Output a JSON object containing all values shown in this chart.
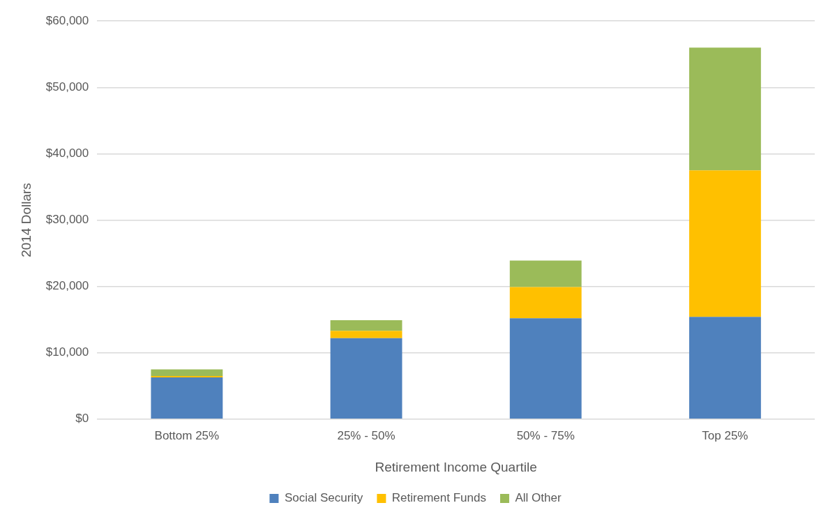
{
  "chart_data": {
    "type": "bar",
    "stacked": true,
    "xlabel": "Retirement Income Quartile",
    "ylabel": "2014 Dollars",
    "categories": [
      "Bottom 25%",
      "25% - 50%",
      "50% - 75%",
      "Top 25%"
    ],
    "series": [
      {
        "name": "Social Security",
        "color": "#4f81bd",
        "values": [
          6300,
          12200,
          15200,
          15400
        ]
      },
      {
        "name": "Retirement Funds",
        "color": "#ffc000",
        "values": [
          200,
          1100,
          4700,
          22100
        ]
      },
      {
        "name": "All Other",
        "color": "#9bbb59",
        "values": [
          1000,
          1600,
          4000,
          18500
        ]
      }
    ],
    "ylim": [
      0,
      60000
    ],
    "yticks": [
      {
        "value": 0,
        "label": "$0"
      },
      {
        "value": 10000,
        "label": "$10,000"
      },
      {
        "value": 20000,
        "label": "$20,000"
      },
      {
        "value": 30000,
        "label": "$30,000"
      },
      {
        "value": 40000,
        "label": "$40,000"
      },
      {
        "value": 50000,
        "label": "$50,000"
      },
      {
        "value": 60000,
        "label": "$60,000"
      }
    ],
    "grid": "y",
    "legend": "bottom"
  }
}
